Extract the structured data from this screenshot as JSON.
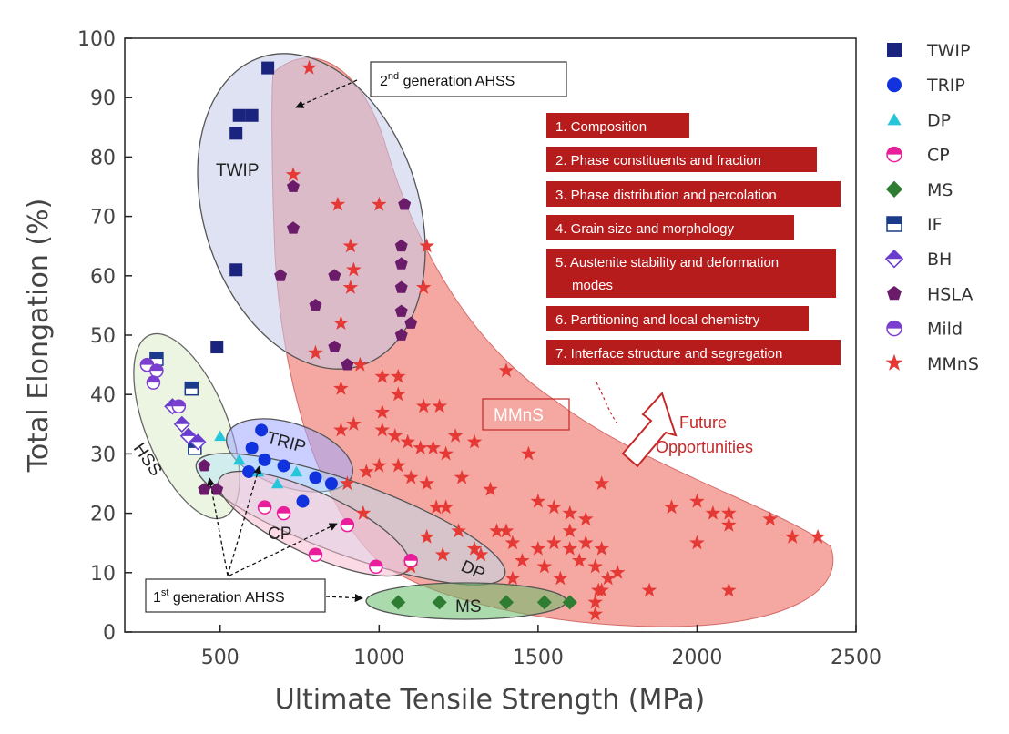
{
  "chart_data": {
    "type": "scatter",
    "xlabel": "Ultimate Tensile Strength (MPa)",
    "ylabel": "Total Elongation (%)",
    "xlim": [
      200,
      2500
    ],
    "ylim": [
      0,
      100
    ],
    "xticks": [
      500,
      1000,
      1500,
      2000,
      2500
    ],
    "yticks": [
      0,
      10,
      20,
      30,
      40,
      50,
      60,
      70,
      80,
      90,
      100
    ],
    "grid": false,
    "legend_position": "right",
    "series": [
      {
        "name": "TWIP",
        "marker": "square",
        "color": "#1a237e",
        "points": [
          [
            650,
            95
          ],
          [
            560,
            87
          ],
          [
            600,
            87
          ],
          [
            550,
            84
          ],
          [
            550,
            61
          ],
          [
            490,
            48
          ]
        ]
      },
      {
        "name": "TRIP",
        "marker": "circle",
        "color": "#1133dd",
        "points": [
          [
            630,
            34
          ],
          [
            600,
            31
          ],
          [
            640,
            29
          ],
          [
            590,
            27
          ],
          [
            700,
            28
          ],
          [
            800,
            26
          ],
          [
            850,
            25
          ],
          [
            760,
            22
          ]
        ]
      },
      {
        "name": "DP",
        "marker": "triangle",
        "color": "#26c6da",
        "points": [
          [
            500,
            33
          ],
          [
            620,
            27
          ],
          [
            740,
            27
          ],
          [
            680,
            25
          ],
          [
            560,
            29
          ]
        ]
      },
      {
        "name": "CP",
        "marker": "half-circle",
        "color": "#e91e9b",
        "points": [
          [
            800,
            13
          ],
          [
            990,
            11
          ],
          [
            1100,
            12
          ],
          [
            640,
            21
          ],
          [
            700,
            20
          ],
          [
            900,
            18
          ]
        ]
      },
      {
        "name": "MS",
        "marker": "diamond",
        "color": "#2e7d32",
        "points": [
          [
            1060,
            5
          ],
          [
            1190,
            5
          ],
          [
            1400,
            5
          ],
          [
            1520,
            5
          ],
          [
            1600,
            5
          ]
        ]
      },
      {
        "name": "IF",
        "marker": "half-square",
        "color": "#1a3a8a",
        "points": [
          [
            300,
            46
          ],
          [
            410,
            41
          ],
          [
            420,
            31
          ]
        ]
      },
      {
        "name": "BH",
        "marker": "half-diamond",
        "color": "#6a3dcd",
        "points": [
          [
            350,
            38
          ],
          [
            380,
            35
          ],
          [
            400,
            33
          ],
          [
            430,
            32
          ]
        ]
      },
      {
        "name": "HSLA",
        "marker": "pentagon",
        "color": "#6a1b6a",
        "points": [
          [
            730,
            75
          ],
          [
            730,
            68
          ],
          [
            690,
            60
          ],
          [
            860,
            60
          ],
          [
            800,
            55
          ],
          [
            860,
            48
          ],
          [
            900,
            45
          ],
          [
            1070,
            65
          ],
          [
            1070,
            62
          ],
          [
            1070,
            58
          ],
          [
            1080,
            72
          ],
          [
            1100,
            52
          ],
          [
            1070,
            50
          ],
          [
            1070,
            54
          ],
          [
            450,
            28
          ],
          [
            450,
            24
          ],
          [
            490,
            24
          ]
        ]
      },
      {
        "name": "Mild",
        "marker": "half-circle",
        "color": "#7b3fcf",
        "points": [
          [
            270,
            45
          ],
          [
            300,
            44
          ],
          [
            290,
            42
          ],
          [
            370,
            38
          ]
        ]
      },
      {
        "name": "MMnS",
        "marker": "star",
        "color": "#e53935",
        "points": [
          [
            780,
            95
          ],
          [
            730,
            77
          ],
          [
            870,
            72
          ],
          [
            1000,
            72
          ],
          [
            910,
            65
          ],
          [
            920,
            61
          ],
          [
            1150,
            65
          ],
          [
            910,
            58
          ],
          [
            1140,
            58
          ],
          [
            880,
            52
          ],
          [
            800,
            47
          ],
          [
            940,
            45
          ],
          [
            880,
            41
          ],
          [
            1010,
            43
          ],
          [
            1060,
            43
          ],
          [
            1060,
            40
          ],
          [
            1010,
            37
          ],
          [
            1140,
            38
          ],
          [
            1190,
            38
          ],
          [
            880,
            34
          ],
          [
            920,
            35
          ],
          [
            1010,
            34
          ],
          [
            1050,
            33
          ],
          [
            1090,
            32
          ],
          [
            1130,
            31
          ],
          [
            1170,
            31
          ],
          [
            1210,
            30
          ],
          [
            1240,
            33
          ],
          [
            1300,
            32
          ],
          [
            1400,
            44
          ],
          [
            1470,
            30
          ],
          [
            1000,
            28
          ],
          [
            1060,
            28
          ],
          [
            1100,
            26
          ],
          [
            1150,
            25
          ],
          [
            1180,
            21
          ],
          [
            1210,
            21
          ],
          [
            1260,
            26
          ],
          [
            1350,
            24
          ],
          [
            1500,
            22
          ],
          [
            1550,
            21
          ],
          [
            1600,
            20
          ],
          [
            1650,
            19
          ],
          [
            1700,
            25
          ],
          [
            1600,
            17
          ],
          [
            1550,
            15
          ],
          [
            1500,
            14
          ],
          [
            1600,
            14
          ],
          [
            1650,
            15
          ],
          [
            1700,
            14
          ],
          [
            1630,
            12
          ],
          [
            1680,
            11
          ],
          [
            1720,
            9
          ],
          [
            1750,
            10
          ],
          [
            1850,
            7
          ],
          [
            1700,
            7
          ],
          [
            1680,
            5
          ],
          [
            1920,
            21
          ],
          [
            2000,
            22
          ],
          [
            2050,
            20
          ],
          [
            2100,
            20
          ],
          [
            2100,
            18
          ],
          [
            2000,
            15
          ],
          [
            2230,
            19
          ],
          [
            2300,
            16
          ],
          [
            2380,
            16
          ],
          [
            2100,
            7
          ],
          [
            1420,
            15
          ],
          [
            1370,
            17
          ],
          [
            1320,
            13
          ],
          [
            1300,
            14
          ],
          [
            1250,
            17
          ],
          [
            1200,
            13
          ],
          [
            1150,
            16
          ],
          [
            1100,
            11
          ],
          [
            950,
            20
          ],
          [
            900,
            25
          ],
          [
            960,
            27
          ],
          [
            1400,
            17
          ],
          [
            1450,
            12
          ],
          [
            1420,
            9
          ],
          [
            1520,
            11
          ],
          [
            1570,
            9
          ],
          [
            1680,
            3
          ],
          [
            1690,
            7
          ]
        ]
      }
    ],
    "regions": [
      {
        "label": "TWIP"
      },
      {
        "label": "TRIP"
      },
      {
        "label": "CP"
      },
      {
        "label": "DP"
      },
      {
        "label": "MS"
      },
      {
        "label": "HSS"
      },
      {
        "label": "MMnS"
      }
    ],
    "callouts": {
      "second_gen": {
        "prefix": "2",
        "sup": "nd",
        "suffix": " generation AHSS"
      },
      "first_gen": {
        "prefix": "1",
        "sup": "st",
        "suffix": " generation AHSS"
      }
    },
    "factors": [
      "1. Composition",
      "2. Phase constituents and fraction",
      "3. Phase distribution and percolation",
      "4. Grain size and morphology",
      "5. Austenite stability and deformation",
      "modes",
      "6. Partitioning and local chemistry",
      "7. Interface structure and segregation"
    ],
    "future_opportunities": [
      "Future",
      "Opportunities"
    ],
    "colors": {
      "factor_box": "#b71c1c",
      "mmns_region": "#f28b82",
      "twip_region": "#c5cae9"
    }
  }
}
